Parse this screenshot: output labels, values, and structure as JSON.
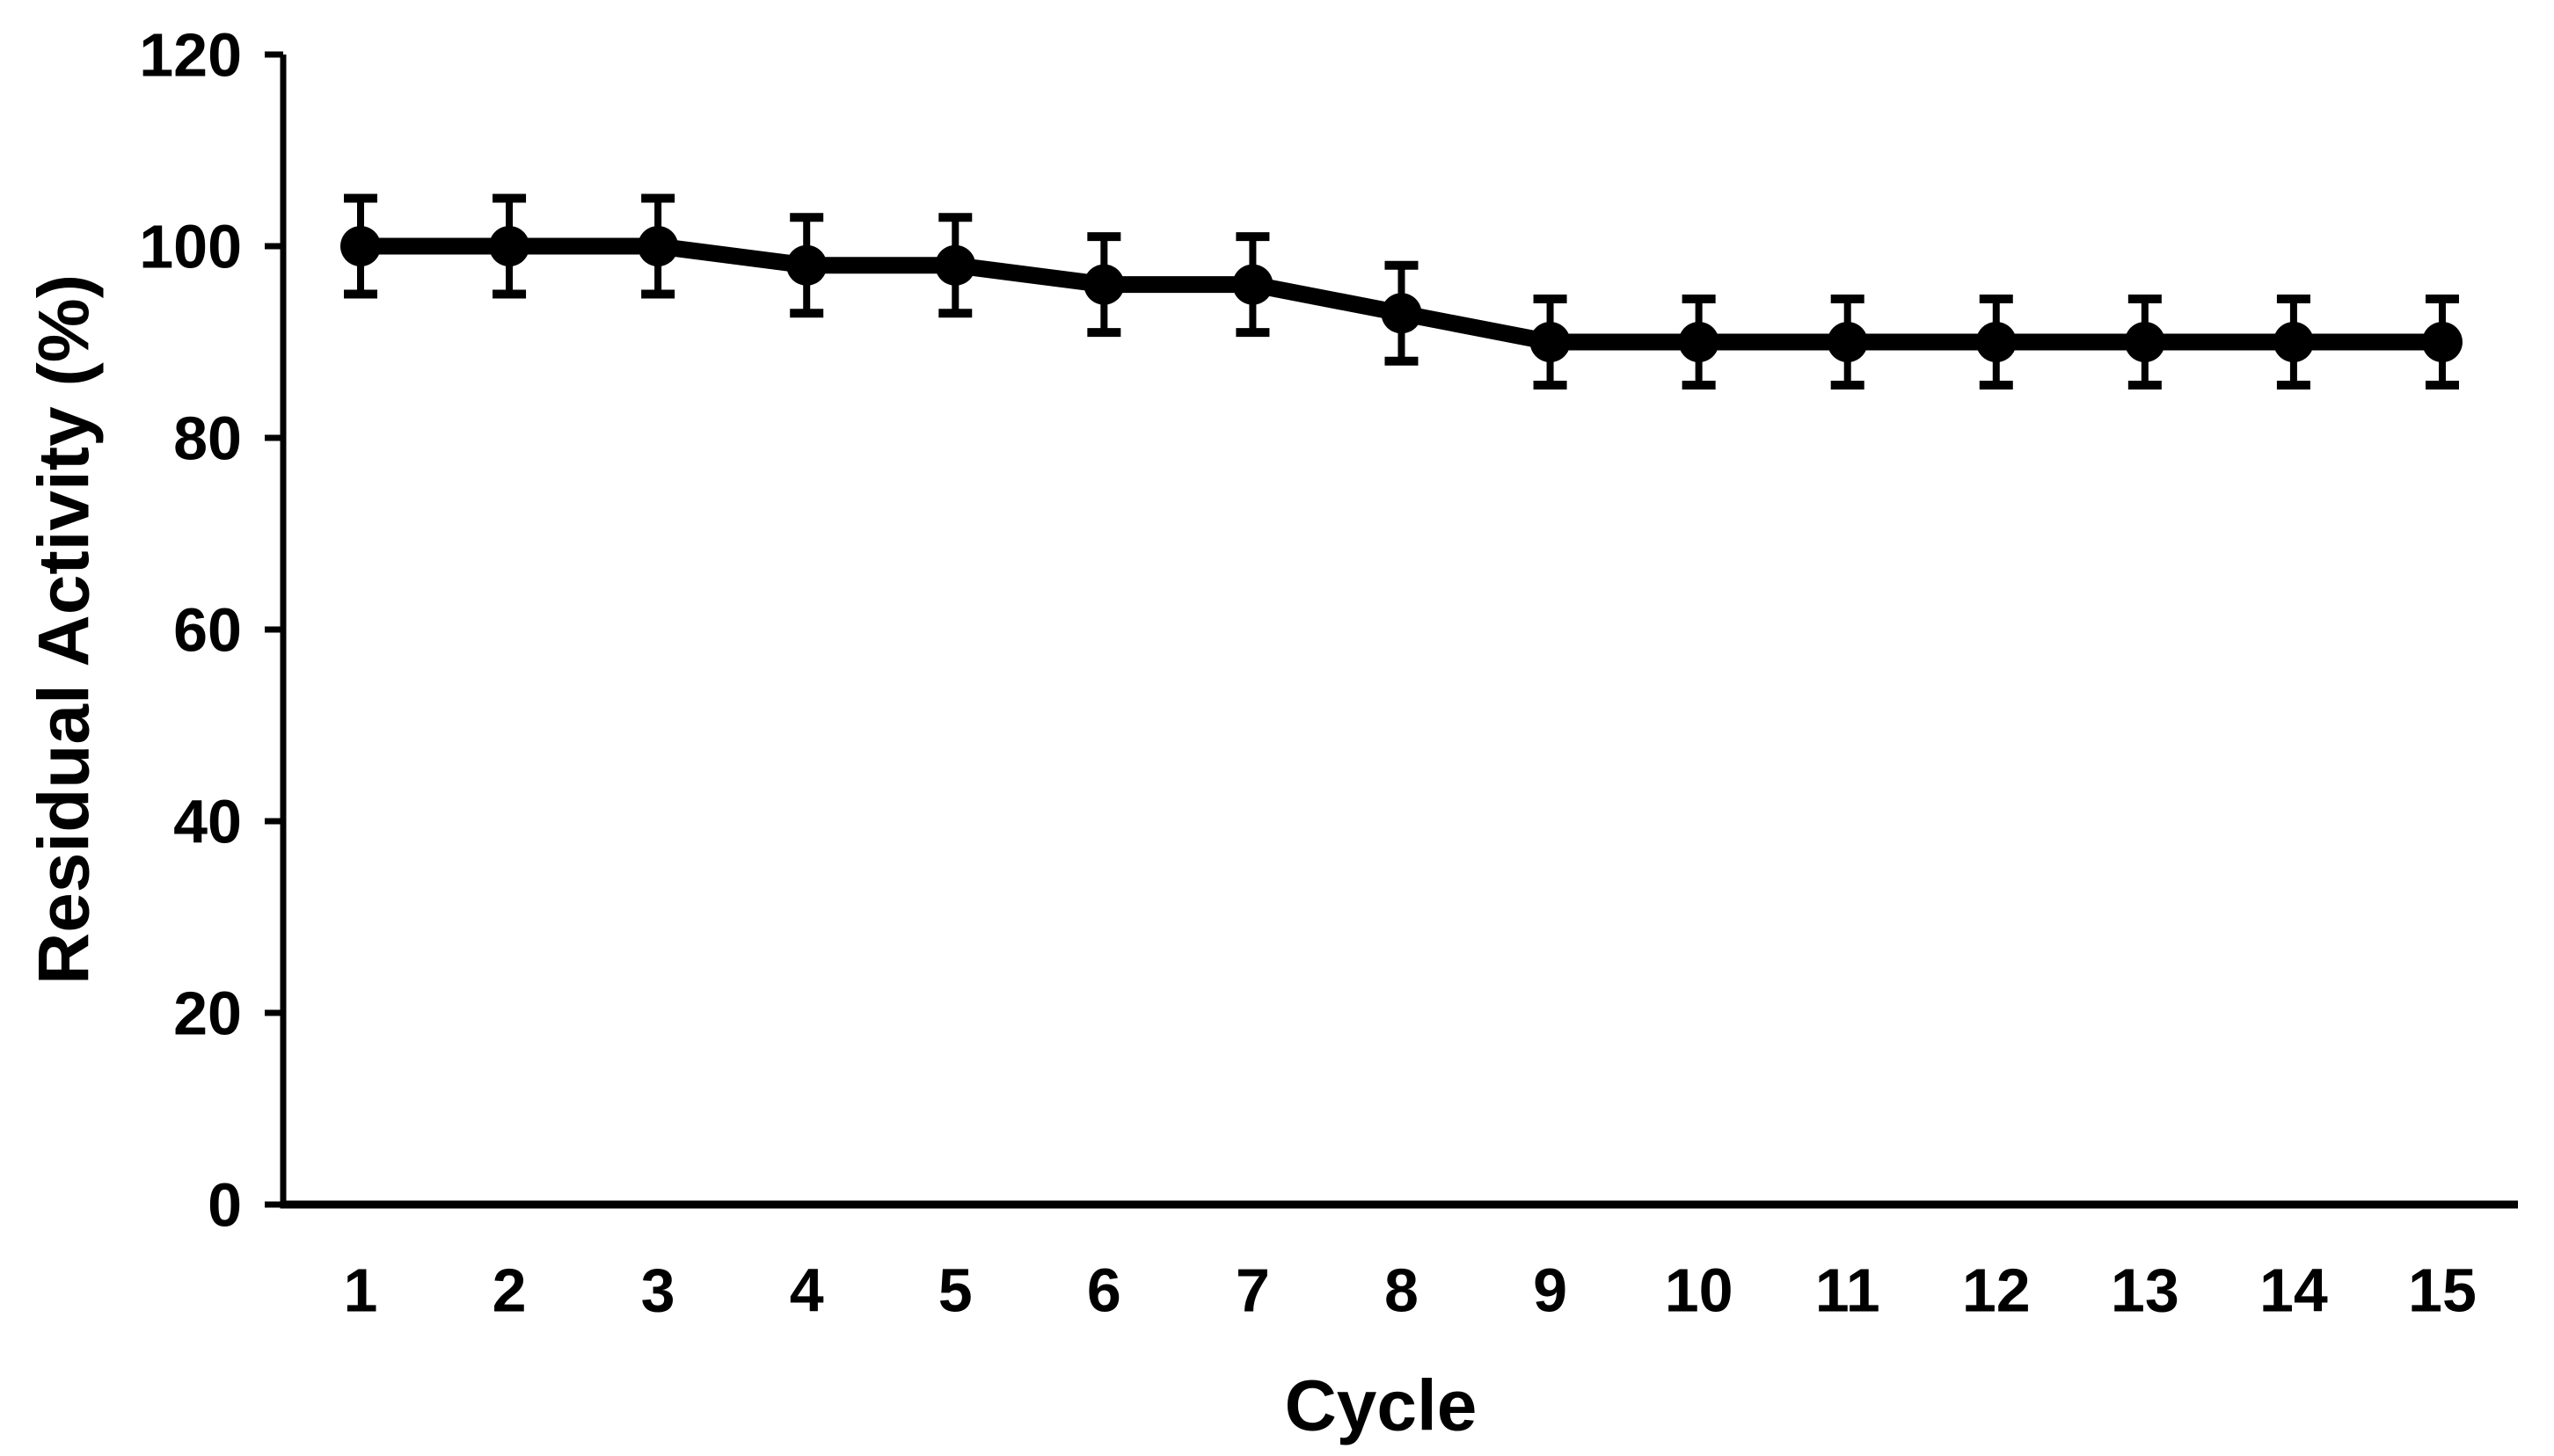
{
  "figure": {
    "background_color": "#ffffff",
    "foreground_color": "#000000"
  },
  "chart_data": {
    "type": "line",
    "title": "",
    "xlabel": "Cycle",
    "ylabel": "Residual Activity (%)",
    "x": [
      1,
      2,
      3,
      4,
      5,
      6,
      7,
      8,
      9,
      10,
      11,
      12,
      13,
      14,
      15
    ],
    "series": [
      {
        "name": "Residual Activity",
        "values": [
          100,
          100,
          100,
          98,
          98,
          96,
          96,
          93,
          90,
          90,
          90,
          90,
          90,
          90,
          90
        ],
        "errors": [
          5,
          5,
          5,
          5,
          5,
          5,
          5,
          5,
          4.5,
          4.5,
          4.5,
          4.5,
          4.5,
          4.5,
          4.5
        ],
        "color": "#000000",
        "marker": "filled-circle",
        "error_bars": "vertical-with-caps"
      }
    ],
    "ylim": [
      0,
      120
    ],
    "yticks": [
      0,
      20,
      40,
      60,
      80,
      100,
      120
    ],
    "xticks": [
      1,
      2,
      3,
      4,
      5,
      6,
      7,
      8,
      9,
      10,
      11,
      12,
      13,
      14,
      15
    ],
    "grid": false,
    "legend": "none"
  }
}
